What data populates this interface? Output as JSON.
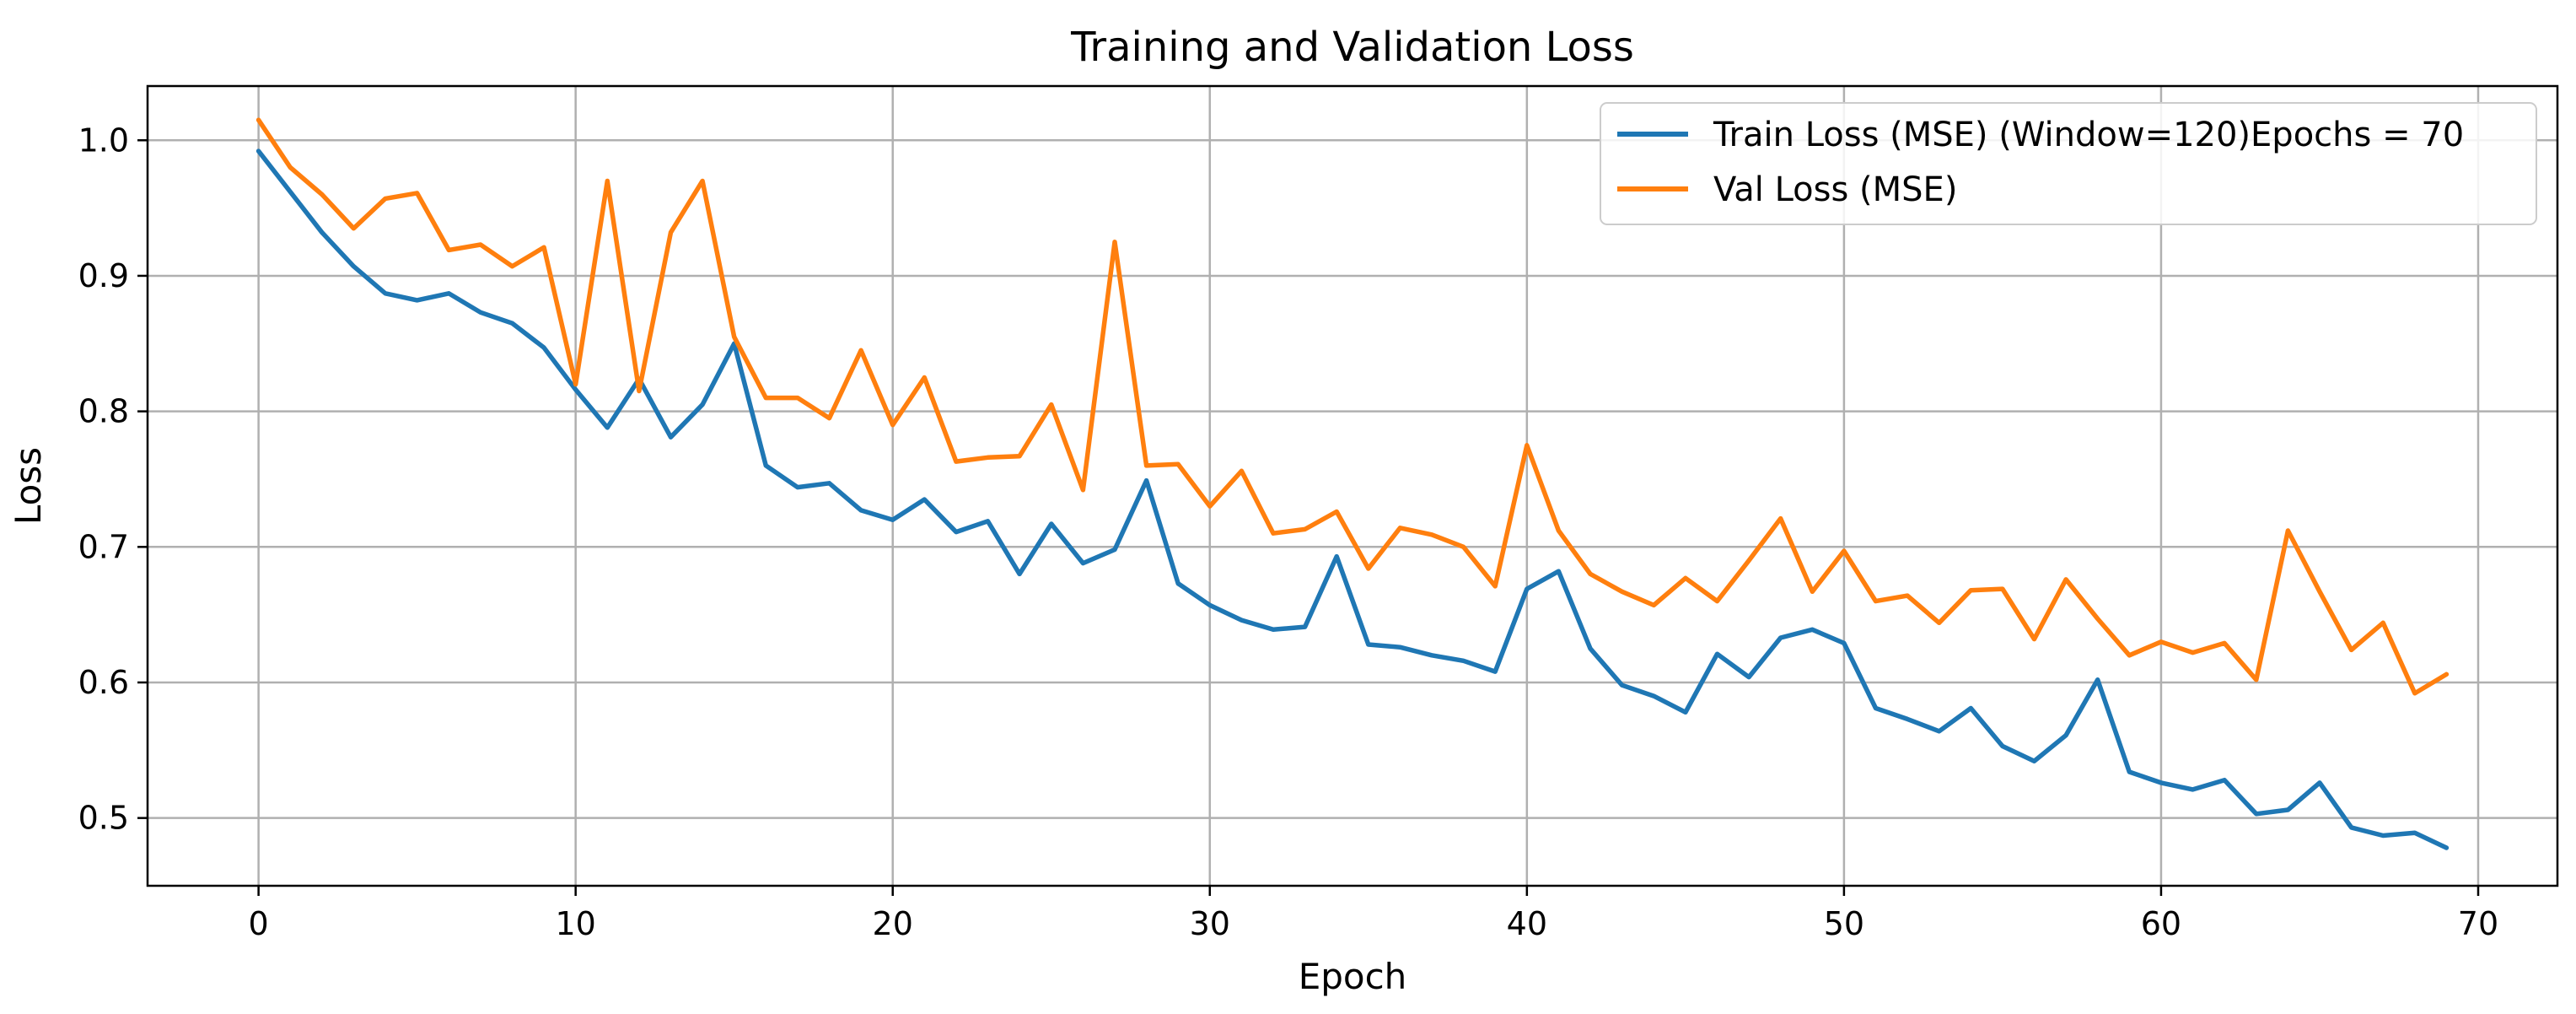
{
  "chart_data": {
    "type": "line",
    "title": "Training and Validation Loss",
    "xlabel": "Epoch",
    "ylabel": "Loss",
    "xlim": [
      -3.5,
      72.5
    ],
    "ylim": [
      0.45,
      1.04
    ],
    "xticks": [
      0,
      10,
      20,
      30,
      40,
      50,
      60,
      70
    ],
    "yticks": [
      0.5,
      0.6,
      0.7,
      0.8,
      0.9,
      1.0
    ],
    "ytick_labels": [
      "0.5",
      "0.6",
      "0.7",
      "0.8",
      "0.9",
      "1.0"
    ],
    "grid": true,
    "legend_position": "top-right",
    "series": [
      {
        "name": "Train Loss (MSE) (Window=120)Epochs = 70",
        "color": "#1f77b4",
        "x": [
          0,
          1,
          2,
          3,
          4,
          5,
          6,
          7,
          8,
          9,
          10,
          11,
          12,
          13,
          14,
          15,
          16,
          17,
          18,
          19,
          20,
          21,
          22,
          23,
          24,
          25,
          26,
          27,
          28,
          29,
          30,
          31,
          32,
          33,
          34,
          35,
          36,
          37,
          38,
          39,
          40,
          41,
          42,
          43,
          44,
          45,
          46,
          47,
          48,
          49,
          50,
          51,
          52,
          53,
          54,
          55,
          56,
          57,
          58,
          59,
          60,
          61,
          62,
          63,
          64,
          65,
          66,
          67,
          68,
          69
        ],
        "values": [
          0.992,
          0.962,
          0.932,
          0.907,
          0.887,
          0.882,
          0.887,
          0.873,
          0.865,
          0.847,
          0.816,
          0.788,
          0.824,
          0.781,
          0.805,
          0.85,
          0.76,
          0.744,
          0.747,
          0.727,
          0.72,
          0.735,
          0.711,
          0.719,
          0.68,
          0.717,
          0.688,
          0.698,
          0.749,
          0.673,
          0.657,
          0.646,
          0.639,
          0.641,
          0.693,
          0.628,
          0.626,
          0.62,
          0.616,
          0.608,
          0.669,
          0.682,
          0.625,
          0.598,
          0.59,
          0.578,
          0.621,
          0.604,
          0.633,
          0.639,
          0.629,
          0.581,
          0.573,
          0.564,
          0.581,
          0.553,
          0.542,
          0.561,
          0.602,
          0.534,
          0.526,
          0.521,
          0.528,
          0.503,
          0.506,
          0.526,
          0.493,
          0.487,
          0.489,
          0.478
        ]
      },
      {
        "name": "Val Loss (MSE)",
        "color": "#ff7f0e",
        "x": [
          0,
          1,
          2,
          3,
          4,
          5,
          6,
          7,
          8,
          9,
          10,
          11,
          12,
          13,
          14,
          15,
          16,
          17,
          18,
          19,
          20,
          21,
          22,
          23,
          24,
          25,
          26,
          27,
          28,
          29,
          30,
          31,
          32,
          33,
          34,
          35,
          36,
          37,
          38,
          39,
          40,
          41,
          42,
          43,
          44,
          45,
          46,
          47,
          48,
          49,
          50,
          51,
          52,
          53,
          54,
          55,
          56,
          57,
          58,
          59,
          60,
          61,
          62,
          63,
          64,
          65,
          66,
          67,
          68,
          69
        ],
        "values": [
          1.015,
          0.98,
          0.96,
          0.935,
          0.957,
          0.961,
          0.919,
          0.923,
          0.907,
          0.921,
          0.82,
          0.97,
          0.815,
          0.932,
          0.97,
          0.855,
          0.81,
          0.81,
          0.795,
          0.845,
          0.79,
          0.825,
          0.763,
          0.766,
          0.767,
          0.805,
          0.742,
          0.925,
          0.76,
          0.761,
          0.73,
          0.756,
          0.71,
          0.713,
          0.726,
          0.684,
          0.714,
          0.709,
          0.7,
          0.671,
          0.775,
          0.712,
          0.68,
          0.667,
          0.657,
          0.677,
          0.66,
          0.69,
          0.721,
          0.667,
          0.697,
          0.66,
          0.664,
          0.644,
          0.668,
          0.669,
          0.632,
          0.676,
          0.647,
          0.62,
          0.63,
          0.622,
          0.629,
          0.602,
          0.712,
          0.667,
          0.624,
          0.644,
          0.592,
          0.606
        ]
      }
    ]
  }
}
